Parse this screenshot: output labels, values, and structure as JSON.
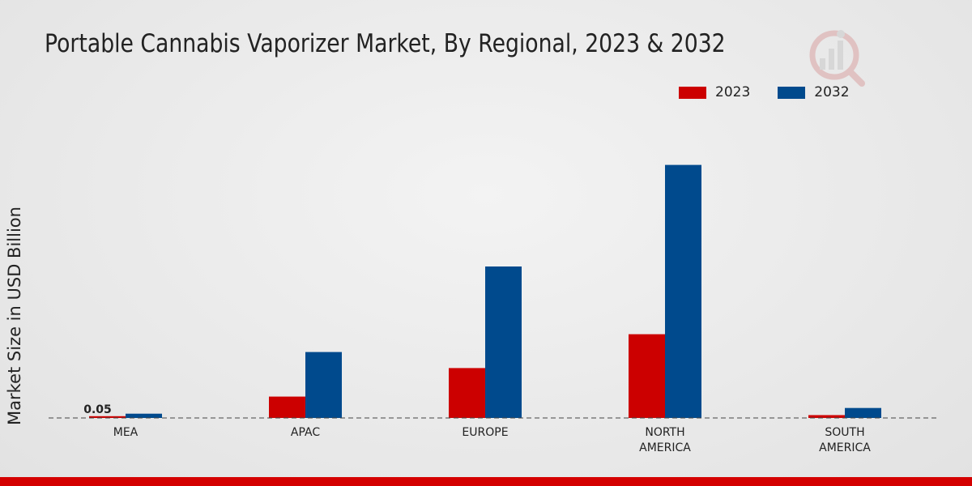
{
  "title": "Portable Cannabis Vaporizer Market, By Regional, 2023 & 2032",
  "logo_icon": "market-research-logo-icon",
  "chart_data": {
    "type": "bar",
    "title": "Portable Cannabis Vaporizer Market, By Regional, 2023 & 2032",
    "xlabel": "",
    "ylabel": "Market Size in USD Billion",
    "categories": [
      [
        "MEA"
      ],
      [
        "APAC"
      ],
      [
        "EUROPE"
      ],
      [
        "NORTH",
        "AMERICA"
      ],
      [
        "SOUTH",
        "AMERICA"
      ]
    ],
    "series": [
      {
        "name": "2023",
        "color": "#cc0000",
        "values": [
          0.05,
          0.6,
          1.4,
          2.35,
          0.08
        ]
      },
      {
        "name": "2032",
        "color": "#004a8d",
        "values": [
          0.12,
          1.85,
          4.25,
          7.1,
          0.28
        ]
      }
    ],
    "data_labels": [
      {
        "series": 0,
        "index": 0,
        "text": "0.05"
      }
    ],
    "ylim": [
      0,
      10
    ],
    "legend": "top-right",
    "baseline": "dashed"
  }
}
